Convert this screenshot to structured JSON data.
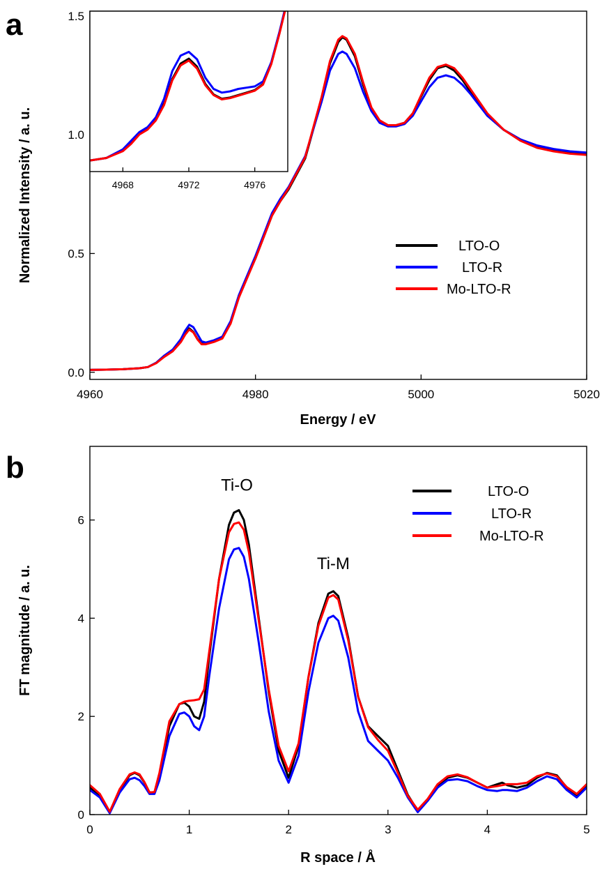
{
  "chart_data": [
    {
      "type": "line",
      "panel_label": "a",
      "xlabel": "Energy / eV",
      "ylabel": "Normalized Intensity / a. u.",
      "xlim": [
        4960,
        5020
      ],
      "ylim": [
        -0.03,
        1.52
      ],
      "xticks": [
        "4960",
        "4980",
        "5000",
        "5020"
      ],
      "yticks": [
        "0.0",
        "0.5",
        "1.0",
        "1.5"
      ],
      "legend_position": "center-right",
      "series": [
        {
          "name": "LTO-O",
          "color": "#000000",
          "x": [
            4960,
            4962,
            4964,
            4966,
            4967,
            4968,
            4969,
            4970,
            4971,
            4971.5,
            4972,
            4972.5,
            4973,
            4973.5,
            4974,
            4975,
            4976,
            4977,
            4978,
            4980,
            4982,
            4983,
            4984,
            4986,
            4988,
            4989,
            4990,
            4990.5,
            4991,
            4992,
            4993,
            4994,
            4995,
            4996,
            4997,
            4998,
            4999,
            5000,
            5001,
            5002,
            5003,
            5004,
            5005,
            5006,
            5007,
            5008,
            5010,
            5012,
            5014,
            5016,
            5018,
            5020
          ],
          "y": [
            0.01,
            0.011,
            0.013,
            0.017,
            0.022,
            0.04,
            0.07,
            0.09,
            0.13,
            0.16,
            0.185,
            0.17,
            0.14,
            0.12,
            0.12,
            0.13,
            0.145,
            0.21,
            0.32,
            0.48,
            0.66,
            0.72,
            0.77,
            0.9,
            1.15,
            1.3,
            1.39,
            1.41,
            1.4,
            1.33,
            1.21,
            1.11,
            1.06,
            1.04,
            1.04,
            1.05,
            1.09,
            1.16,
            1.23,
            1.28,
            1.29,
            1.27,
            1.23,
            1.18,
            1.13,
            1.08,
            1.02,
            0.98,
            0.95,
            0.935,
            0.925,
            0.92
          ]
        },
        {
          "name": "LTO-R",
          "color": "#0000ff",
          "x": [
            4960,
            4962,
            4964,
            4966,
            4967,
            4968,
            4969,
            4970,
            4971,
            4971.5,
            4972,
            4972.5,
            4973,
            4973.5,
            4974,
            4975,
            4976,
            4977,
            4978,
            4980,
            4982,
            4983,
            4984,
            4986,
            4988,
            4989,
            4990,
            4990.5,
            4991,
            4992,
            4993,
            4994,
            4995,
            4996,
            4997,
            4998,
            4999,
            5000,
            5001,
            5002,
            5003,
            5004,
            5005,
            5006,
            5007,
            5008,
            5010,
            5012,
            5014,
            5016,
            5018,
            5020
          ],
          "y": [
            0.01,
            0.011,
            0.013,
            0.017,
            0.022,
            0.04,
            0.07,
            0.095,
            0.14,
            0.175,
            0.2,
            0.19,
            0.16,
            0.13,
            0.125,
            0.135,
            0.15,
            0.215,
            0.325,
            0.49,
            0.67,
            0.73,
            0.78,
            0.91,
            1.14,
            1.27,
            1.34,
            1.35,
            1.34,
            1.28,
            1.18,
            1.1,
            1.05,
            1.035,
            1.035,
            1.045,
            1.08,
            1.14,
            1.2,
            1.24,
            1.25,
            1.24,
            1.21,
            1.17,
            1.125,
            1.08,
            1.02,
            0.98,
            0.955,
            0.94,
            0.93,
            0.925
          ]
        },
        {
          "name": "Mo-LTO-R",
          "color": "#ff0000",
          "x": [
            4960,
            4962,
            4964,
            4966,
            4967,
            4968,
            4969,
            4970,
            4971,
            4971.5,
            4972,
            4972.5,
            4973,
            4973.5,
            4974,
            4975,
            4976,
            4977,
            4978,
            4980,
            4982,
            4983,
            4984,
            4986,
            4988,
            4989,
            4990,
            4990.5,
            4991,
            4992,
            4993,
            4994,
            4995,
            4996,
            4997,
            4998,
            4999,
            5000,
            5001,
            5002,
            5003,
            5004,
            5005,
            5006,
            5007,
            5008,
            5010,
            5012,
            5014,
            5016,
            5018,
            5020
          ],
          "y": [
            0.01,
            0.011,
            0.013,
            0.017,
            0.022,
            0.038,
            0.065,
            0.088,
            0.128,
            0.158,
            0.18,
            0.168,
            0.138,
            0.118,
            0.118,
            0.128,
            0.142,
            0.205,
            0.315,
            0.48,
            0.66,
            0.72,
            0.775,
            0.905,
            1.16,
            1.31,
            1.4,
            1.415,
            1.405,
            1.34,
            1.22,
            1.115,
            1.06,
            1.04,
            1.04,
            1.05,
            1.09,
            1.165,
            1.24,
            1.285,
            1.295,
            1.28,
            1.24,
            1.19,
            1.14,
            1.09,
            1.02,
            0.975,
            0.945,
            0.93,
            0.92,
            0.915
          ]
        }
      ],
      "inset": {
        "xlim": [
          4966,
          4978
        ],
        "ylim": [
          0.0,
          0.26
        ],
        "xticks": [
          "4968",
          "4972",
          "4976"
        ],
        "series": [
          {
            "name": "LTO-O",
            "color": "#000000",
            "x": [
              4966,
              4967,
              4968,
              4968.5,
              4969,
              4969.5,
              4970,
              4970.5,
              4971,
              4971.5,
              4972,
              4972.5,
              4973,
              4973.5,
              4974,
              4974.5,
              4975,
              4975.5,
              4976,
              4976.5,
              4977,
              4977.5,
              4978
            ],
            "y": [
              0.018,
              0.022,
              0.035,
              0.048,
              0.062,
              0.07,
              0.085,
              0.11,
              0.15,
              0.175,
              0.183,
              0.17,
              0.142,
              0.125,
              0.118,
              0.12,
              0.124,
              0.128,
              0.132,
              0.142,
              0.175,
              0.225,
              0.28
            ]
          },
          {
            "name": "LTO-R",
            "color": "#0000ff",
            "x": [
              4966,
              4967,
              4968,
              4968.5,
              4969,
              4969.5,
              4970,
              4970.5,
              4971,
              4971.5,
              4972,
              4972.5,
              4973,
              4973.5,
              4974,
              4974.5,
              4975,
              4975.5,
              4976,
              4976.5,
              4977,
              4977.5,
              4978
            ],
            "y": [
              0.018,
              0.022,
              0.036,
              0.05,
              0.064,
              0.072,
              0.088,
              0.118,
              0.163,
              0.188,
              0.194,
              0.182,
              0.152,
              0.134,
              0.128,
              0.13,
              0.134,
              0.136,
              0.138,
              0.146,
              0.177,
              0.227,
              0.282
            ]
          },
          {
            "name": "Mo-LTO-R",
            "color": "#ff0000",
            "x": [
              4966,
              4967,
              4968,
              4968.5,
              4969,
              4969.5,
              4970,
              4970.5,
              4971,
              4971.5,
              4972,
              4972.5,
              4973,
              4973.5,
              4974,
              4974.5,
              4975,
              4975.5,
              4976,
              4976.5,
              4977,
              4977.5,
              4978
            ],
            "y": [
              0.018,
              0.022,
              0.033,
              0.045,
              0.06,
              0.068,
              0.083,
              0.108,
              0.148,
              0.172,
              0.18,
              0.167,
              0.14,
              0.124,
              0.117,
              0.119,
              0.123,
              0.127,
              0.131,
              0.141,
              0.174,
              0.224,
              0.279
            ]
          }
        ]
      }
    },
    {
      "type": "line",
      "panel_label": "b",
      "xlabel": "R space / Å",
      "ylabel": "FT magnitude / a. u.",
      "xlim": [
        0,
        5
      ],
      "ylim": [
        0,
        7.5
      ],
      "xticks": [
        "0",
        "1",
        "2",
        "3",
        "4",
        "5"
      ],
      "yticks": [
        "0",
        "2",
        "4",
        "6"
      ],
      "legend_position": "top-right",
      "annotations": [
        {
          "text": "Ti-O",
          "x": 1.48,
          "y": 6.6
        },
        {
          "text": "Ti-M",
          "x": 2.45,
          "y": 5.0
        }
      ],
      "series": [
        {
          "name": "LTO-O",
          "color": "#000000",
          "x": [
            0,
            0.1,
            0.2,
            0.3,
            0.4,
            0.45,
            0.5,
            0.55,
            0.6,
            0.65,
            0.7,
            0.8,
            0.9,
            0.95,
            1.0,
            1.05,
            1.1,
            1.15,
            1.2,
            1.3,
            1.4,
            1.45,
            1.5,
            1.55,
            1.6,
            1.7,
            1.8,
            1.9,
            2.0,
            2.1,
            2.2,
            2.3,
            2.4,
            2.45,
            2.5,
            2.6,
            2.7,
            2.8,
            2.9,
            3.0,
            3.1,
            3.2,
            3.3,
            3.4,
            3.5,
            3.6,
            3.7,
            3.8,
            3.9,
            4.0,
            4.1,
            4.15,
            4.2,
            4.3,
            4.4,
            4.5,
            4.6,
            4.7,
            4.8,
            4.9,
            5.0
          ],
          "y": [
            0.55,
            0.4,
            0.05,
            0.5,
            0.8,
            0.85,
            0.8,
            0.65,
            0.45,
            0.45,
            0.8,
            1.8,
            2.25,
            2.28,
            2.2,
            2.0,
            1.95,
            2.3,
            3.2,
            4.8,
            5.9,
            6.15,
            6.2,
            6.0,
            5.5,
            4.0,
            2.5,
            1.3,
            0.75,
            1.4,
            2.8,
            3.9,
            4.5,
            4.55,
            4.45,
            3.6,
            2.4,
            1.8,
            1.6,
            1.4,
            0.9,
            0.4,
            0.08,
            0.3,
            0.6,
            0.75,
            0.8,
            0.75,
            0.65,
            0.55,
            0.62,
            0.65,
            0.6,
            0.55,
            0.6,
            0.75,
            0.85,
            0.8,
            0.55,
            0.4,
            0.6
          ]
        },
        {
          "name": "LTO-R",
          "color": "#0000ff",
          "x": [
            0,
            0.1,
            0.2,
            0.3,
            0.4,
            0.45,
            0.5,
            0.55,
            0.6,
            0.65,
            0.7,
            0.8,
            0.9,
            0.95,
            1.0,
            1.05,
            1.1,
            1.15,
            1.2,
            1.3,
            1.4,
            1.45,
            1.5,
            1.55,
            1.6,
            1.7,
            1.8,
            1.9,
            2.0,
            2.1,
            2.2,
            2.3,
            2.4,
            2.45,
            2.5,
            2.6,
            2.7,
            2.8,
            2.9,
            3.0,
            3.1,
            3.2,
            3.3,
            3.4,
            3.5,
            3.6,
            3.7,
            3.8,
            3.9,
            4.0,
            4.1,
            4.15,
            4.2,
            4.3,
            4.4,
            4.5,
            4.6,
            4.7,
            4.8,
            4.9,
            5.0
          ],
          "y": [
            0.5,
            0.35,
            0.03,
            0.45,
            0.72,
            0.75,
            0.7,
            0.58,
            0.42,
            0.42,
            0.7,
            1.6,
            2.05,
            2.08,
            2.0,
            1.8,
            1.72,
            2.0,
            2.8,
            4.2,
            5.2,
            5.4,
            5.43,
            5.25,
            4.8,
            3.5,
            2.1,
            1.1,
            0.65,
            1.2,
            2.5,
            3.5,
            4.0,
            4.05,
            3.95,
            3.2,
            2.1,
            1.5,
            1.3,
            1.1,
            0.75,
            0.35,
            0.05,
            0.28,
            0.55,
            0.7,
            0.72,
            0.68,
            0.58,
            0.5,
            0.48,
            0.5,
            0.5,
            0.48,
            0.55,
            0.68,
            0.78,
            0.72,
            0.5,
            0.35,
            0.55
          ]
        },
        {
          "name": "Mo-LTO-R",
          "color": "#ff0000",
          "x": [
            0,
            0.1,
            0.2,
            0.3,
            0.4,
            0.45,
            0.5,
            0.55,
            0.6,
            0.65,
            0.7,
            0.8,
            0.9,
            0.95,
            1.0,
            1.05,
            1.1,
            1.15,
            1.2,
            1.3,
            1.4,
            1.45,
            1.5,
            1.55,
            1.6,
            1.7,
            1.8,
            1.9,
            2.0,
            2.1,
            2.2,
            2.3,
            2.4,
            2.45,
            2.5,
            2.6,
            2.7,
            2.8,
            2.9,
            3.0,
            3.1,
            3.2,
            3.3,
            3.4,
            3.5,
            3.6,
            3.7,
            3.8,
            3.9,
            4.0,
            4.1,
            4.15,
            4.2,
            4.3,
            4.4,
            4.5,
            4.6,
            4.7,
            4.8,
            4.9,
            5.0
          ],
          "y": [
            0.6,
            0.42,
            0.06,
            0.52,
            0.82,
            0.86,
            0.82,
            0.66,
            0.45,
            0.46,
            0.85,
            1.9,
            2.25,
            2.3,
            2.32,
            2.33,
            2.35,
            2.55,
            3.3,
            4.8,
            5.75,
            5.92,
            5.95,
            5.8,
            5.35,
            3.95,
            2.55,
            1.4,
            0.88,
            1.45,
            2.8,
            3.85,
            4.42,
            4.47,
            4.38,
            3.55,
            2.4,
            1.78,
            1.52,
            1.3,
            0.85,
            0.38,
            0.1,
            0.32,
            0.62,
            0.78,
            0.82,
            0.76,
            0.65,
            0.55,
            0.58,
            0.6,
            0.62,
            0.62,
            0.65,
            0.78,
            0.84,
            0.78,
            0.56,
            0.42,
            0.62
          ]
        }
      ]
    }
  ]
}
